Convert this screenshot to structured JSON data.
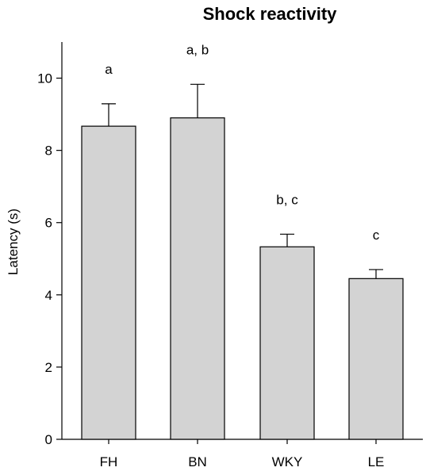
{
  "chart_data": {
    "type": "bar",
    "title": "Shock reactivity",
    "xlabel": "",
    "ylabel": "Latency (s)",
    "ylim": [
      0,
      11
    ],
    "yticks": [
      0,
      2,
      4,
      6,
      8,
      10
    ],
    "categories": [
      "FH",
      "BN",
      "WKY",
      "LE"
    ],
    "values": [
      8.67,
      8.9,
      5.33,
      4.45
    ],
    "errors": [
      0.62,
      0.93,
      0.35,
      0.25
    ],
    "significance_labels": [
      "a",
      "a, b",
      "b, c",
      "c"
    ],
    "bar_color": "#d3d3d3",
    "bar_edge_color": "#000000",
    "grid": false
  }
}
